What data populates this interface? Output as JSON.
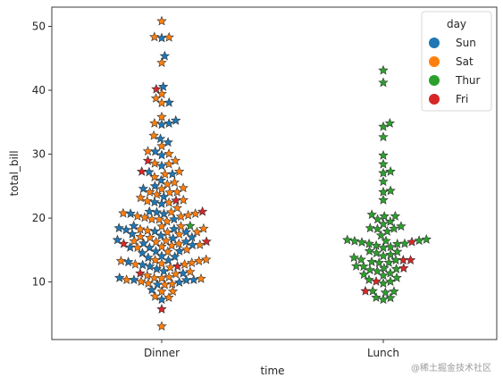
{
  "chart_data": {
    "type": "scatter",
    "subtype": "swarm",
    "marker": "star",
    "xlabel": "time",
    "ylabel": "total_bill",
    "categories": [
      "Dinner",
      "Lunch"
    ],
    "ylim": [
      1,
      53
    ],
    "yticks": [
      10,
      20,
      30,
      40,
      50
    ],
    "legend": {
      "title": "day",
      "position": "upper right"
    },
    "hue_order": [
      "Sun",
      "Sat",
      "Thur",
      "Fri"
    ],
    "hue_colors": {
      "Sun": "#1f77b4",
      "Sat": "#ff7f0e",
      "Thur": "#2ca02c",
      "Fri": "#d62728"
    },
    "series": [
      {
        "name": "Sun",
        "category": "Dinner",
        "values": [
          48.17,
          45.35,
          40.55,
          38.07,
          35.26,
          34.81,
          34.63,
          32.4,
          31.85,
          30.4,
          29.85,
          28.17,
          27.2,
          26.88,
          25.89,
          25.0,
          24.59,
          23.33,
          22.49,
          22.23,
          21.01,
          20.9,
          20.69,
          20.65,
          19.82,
          18.78,
          18.43,
          18.29,
          18.15,
          17.92,
          17.81,
          17.51,
          17.26,
          16.99,
          16.82,
          16.58,
          16.31,
          16.04,
          15.77,
          15.42,
          15.36,
          14.83,
          14.78,
          14.52,
          14.07,
          13.94,
          13.81,
          13.39,
          13.13,
          12.66,
          12.43,
          12.02,
          11.69,
          11.35,
          10.65,
          10.34,
          10.33,
          10.29,
          9.94,
          9.6,
          8.77,
          7.25
        ]
      },
      {
        "name": "Sat",
        "category": "Dinner",
        "values": [
          50.81,
          48.33,
          48.27,
          44.3,
          39.42,
          38.73,
          38.01,
          35.83,
          34.83,
          32.9,
          31.27,
          30.46,
          30.06,
          28.97,
          28.55,
          28.44,
          27.28,
          26.86,
          26.41,
          25.56,
          25.29,
          24.71,
          24.55,
          24.08,
          24.06,
          24.01,
          23.68,
          23.17,
          22.82,
          22.67,
          22.42,
          21.58,
          20.92,
          20.76,
          20.69,
          20.45,
          20.29,
          20.23,
          20.08,
          19.81,
          19.77,
          19.49,
          18.71,
          18.69,
          18.35,
          18.24,
          18.04,
          17.82,
          17.78,
          17.46,
          17.07,
          16.93,
          16.45,
          16.4,
          16.27,
          15.98,
          15.81,
          15.69,
          15.53,
          15.38,
          15.06,
          14.73,
          13.51,
          13.42,
          13.28,
          13.27,
          13.0,
          12.9,
          12.76,
          12.74,
          12.26,
          11.59,
          11.24,
          11.02,
          10.77,
          10.63,
          10.59,
          10.51,
          10.34,
          10.07,
          9.78,
          9.68,
          9.55,
          8.52,
          8.51,
          7.74,
          7.56,
          3.07
        ]
      },
      {
        "name": "Thur",
        "category": "Dinner",
        "values": [
          18.78
        ]
      },
      {
        "name": "Fri",
        "category": "Dinner",
        "values": [
          40.17,
          28.97,
          27.28,
          22.75,
          21.01,
          16.32,
          15.98,
          12.46,
          11.35,
          5.75
        ]
      },
      {
        "name": "Thur",
        "category": "Lunch",
        "values": [
          43.11,
          41.19,
          34.83,
          34.3,
          32.68,
          29.8,
          28.44,
          27.28,
          27.05,
          25.71,
          24.27,
          24.08,
          22.82,
          20.53,
          20.29,
          20.27,
          19.81,
          19.44,
          19.08,
          18.71,
          18.43,
          18.35,
          18.29,
          17.92,
          17.29,
          16.66,
          16.58,
          16.47,
          16.43,
          16.4,
          16.21,
          16.0,
          15.98,
          15.95,
          15.69,
          15.48,
          15.36,
          14.83,
          14.73,
          14.52,
          14.26,
          14.07,
          13.81,
          13.51,
          13.42,
          13.16,
          13.03,
          13.0,
          12.48,
          12.43,
          12.16,
          12.03,
          11.87,
          11.69,
          11.38,
          11.17,
          11.02,
          10.65,
          10.34,
          10.07,
          9.78,
          8.58,
          8.52,
          8.35,
          7.56,
          7.51,
          7.25
        ]
      },
      {
        "name": "Fri",
        "category": "Lunch",
        "values": [
          16.27,
          13.42,
          13.42,
          12.16,
          10.09,
          8.58
        ]
      }
    ]
  },
  "watermark": "@稀土掘金技术社区"
}
